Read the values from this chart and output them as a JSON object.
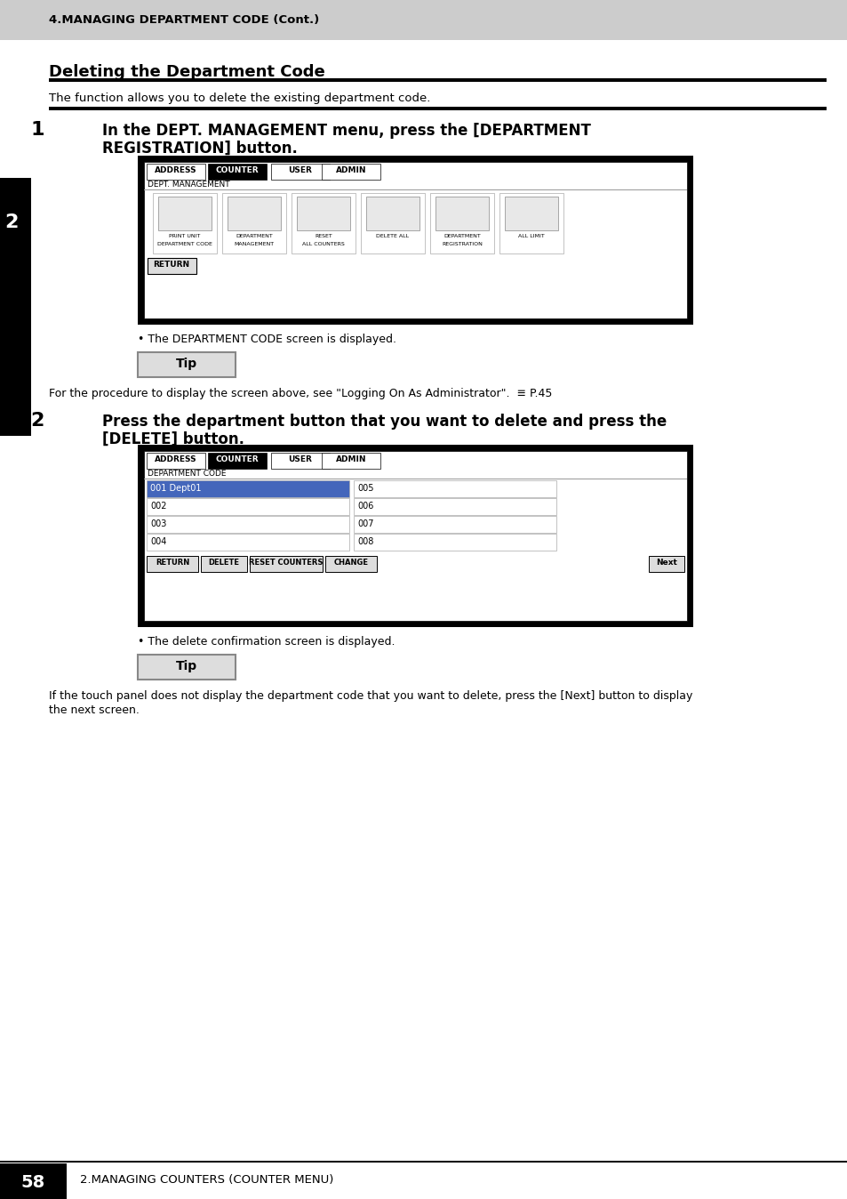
{
  "header_bg": "#cccccc",
  "header_text": "4.MANAGING DEPARTMENT CODE (Cont.)",
  "header_text_color": "#000000",
  "page_bg": "#ffffff",
  "section_title": "Deleting the Department Code",
  "section_subtitle": "The function allows you to delete the existing department code.",
  "step1_bullet": "The DEPARTMENT CODE screen is displayed.",
  "tip_text1": "For the procedure to display the screen above, see \"Logging On As Administrator\".  ≡ P.45",
  "step2_bullet": "The delete confirmation screen is displayed.",
  "tip_text2": "If the touch panel does not display the department code that you want to delete, press the [Next] button to display\nthe next screen.",
  "sidebar_bg": "#000000",
  "sidebar_text": "2",
  "sidebar_text_color": "#ffffff",
  "footer_left_bg": "#000000",
  "footer_page": "58",
  "footer_text": "2.MANAGING COUNTERS (COUNTER MENU)"
}
